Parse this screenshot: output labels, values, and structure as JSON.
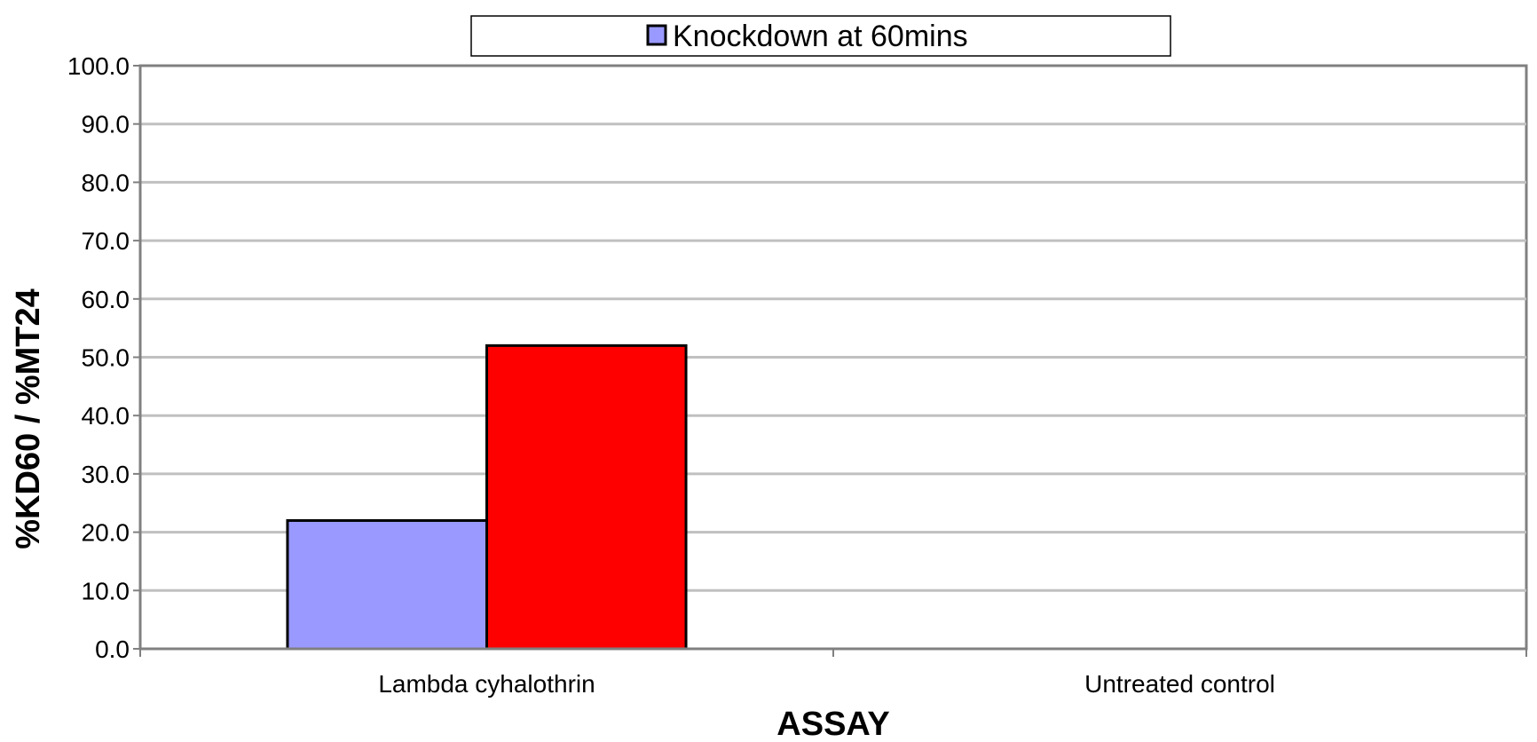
{
  "chart_data": {
    "type": "bar",
    "categories": [
      "Lambda cyhalothrin",
      "Untreated control"
    ],
    "series": [
      {
        "name": "Knockdown at 60mins",
        "values": [
          22.0,
          null
        ],
        "color": "#9999ff"
      },
      {
        "values": [
          52.0,
          null
        ],
        "color": "#ff0000"
      }
    ],
    "xlabel": "ASSAY",
    "ylabel": "%KD60  / %MT24",
    "ylim": [
      0,
      100
    ],
    "yticks": [
      "0.0",
      "10.0",
      "20.0",
      "30.0",
      "40.0",
      "50.0",
      "60.0",
      "70.0",
      "80.0",
      "90.0",
      "100.0"
    ],
    "grid": true,
    "gridline_color": "#c0c0c0",
    "legend_position": "top"
  }
}
